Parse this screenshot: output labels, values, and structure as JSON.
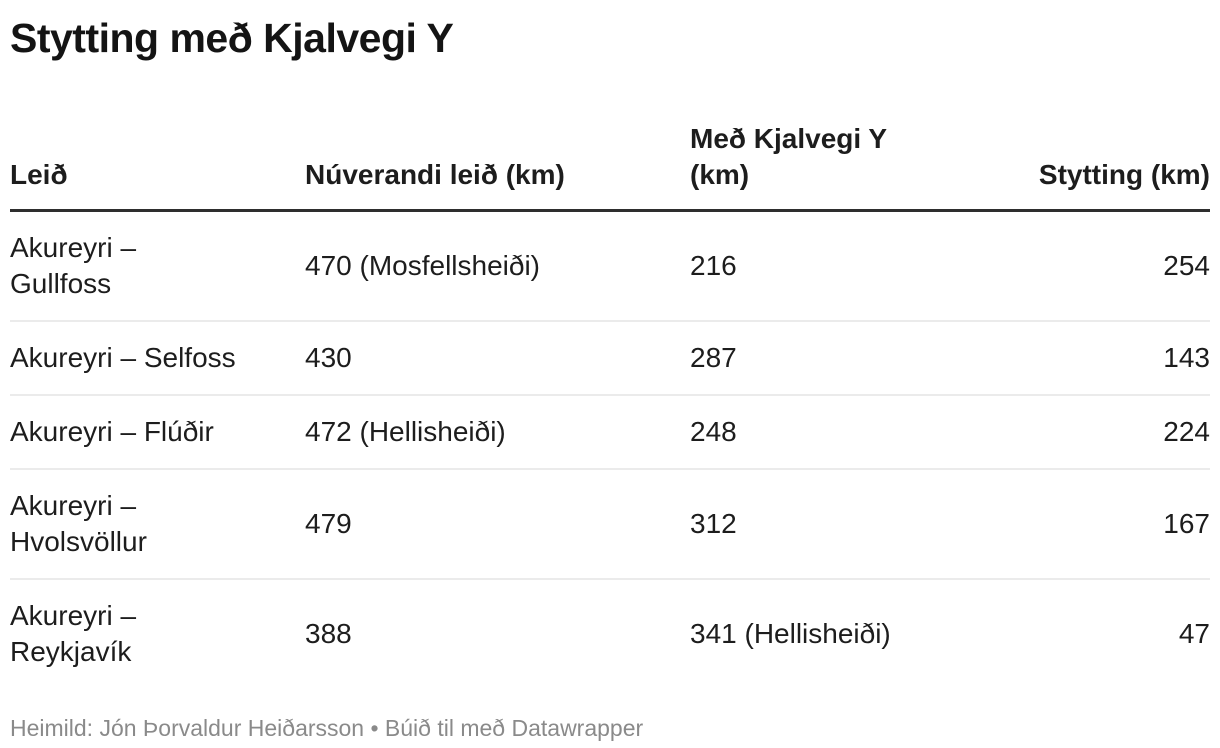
{
  "title": "Stytting með Kjalvegi Y",
  "chart_data": {
    "type": "table",
    "title": "Stytting með Kjalvegi Y",
    "columns": [
      {
        "label": "Leið",
        "align": "left"
      },
      {
        "label": "Núverandi leið (km)",
        "align": "left"
      },
      {
        "label": "Með Kjalvegi Y (km)",
        "align": "left"
      },
      {
        "label": "Stytting (km)",
        "align": "right"
      }
    ],
    "rows": [
      [
        "Akureyri – Gullfoss",
        "470 (Mosfellsheiði)",
        "216",
        "254"
      ],
      [
        "Akureyri – Selfoss",
        "430",
        "287",
        "143"
      ],
      [
        "Akureyri – Flúðir",
        "472 (Hellisheiði)",
        "248",
        "224"
      ],
      [
        "Akureyri – Hvolsvöllur",
        "479",
        "312",
        "167"
      ],
      [
        "Akureyri – Reykjavík",
        "388",
        "341 (Hellisheiði)",
        "47"
      ]
    ],
    "layout_hints": {
      "header_rule": "thick dark line under header",
      "row_rules": "thin light gray lines between rows, none after last row",
      "last_column_alignment": "right"
    }
  },
  "footer": {
    "text": "Heimild: Jón Þorvaldur Heiðarsson • Búið til með Datawrapper"
  },
  "colors": {
    "background": "#ffffff",
    "text": "#1d1d1d",
    "title_text": "#141414",
    "header_rule": "#2e2e2e",
    "row_rule": "#ebebeb",
    "footer_text": "#8a8a8a"
  }
}
